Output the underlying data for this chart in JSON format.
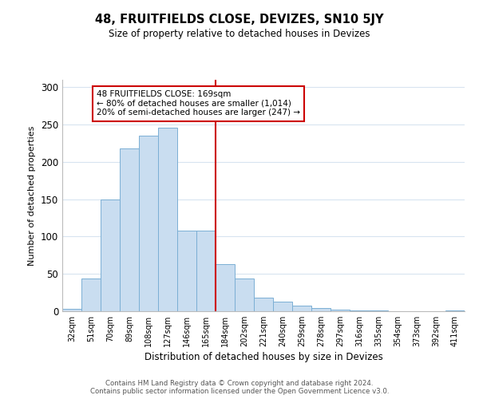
{
  "title": "48, FRUITFIELDS CLOSE, DEVIZES, SN10 5JY",
  "subtitle": "Size of property relative to detached houses in Devizes",
  "xlabel": "Distribution of detached houses by size in Devizes",
  "ylabel": "Number of detached properties",
  "bar_labels": [
    "32sqm",
    "51sqm",
    "70sqm",
    "89sqm",
    "108sqm",
    "127sqm",
    "146sqm",
    "165sqm",
    "184sqm",
    "202sqm",
    "221sqm",
    "240sqm",
    "259sqm",
    "278sqm",
    "297sqm",
    "316sqm",
    "335sqm",
    "354sqm",
    "373sqm",
    "392sqm",
    "411sqm"
  ],
  "bar_heights": [
    3,
    44,
    150,
    218,
    235,
    246,
    108,
    108,
    63,
    44,
    18,
    13,
    8,
    4,
    2,
    1,
    1,
    0,
    0,
    0,
    1
  ],
  "bar_color": "#c9ddf0",
  "bar_edge_color": "#7bafd4",
  "vline_x": 7.5,
  "vline_color": "#cc0000",
  "annotation_title": "48 FRUITFIELDS CLOSE: 169sqm",
  "annotation_line1": "← 80% of detached houses are smaller (1,014)",
  "annotation_line2": "20% of semi-detached houses are larger (247) →",
  "annotation_box_color": "#ffffff",
  "annotation_box_edge_color": "#cc0000",
  "ylim": [
    0,
    310
  ],
  "yticks": [
    0,
    50,
    100,
    150,
    200,
    250,
    300
  ],
  "footnote1": "Contains HM Land Registry data © Crown copyright and database right 2024.",
  "footnote2": "Contains public sector information licensed under the Open Government Licence v3.0.",
  "background_color": "#ffffff",
  "grid_color": "#d8e4f0"
}
